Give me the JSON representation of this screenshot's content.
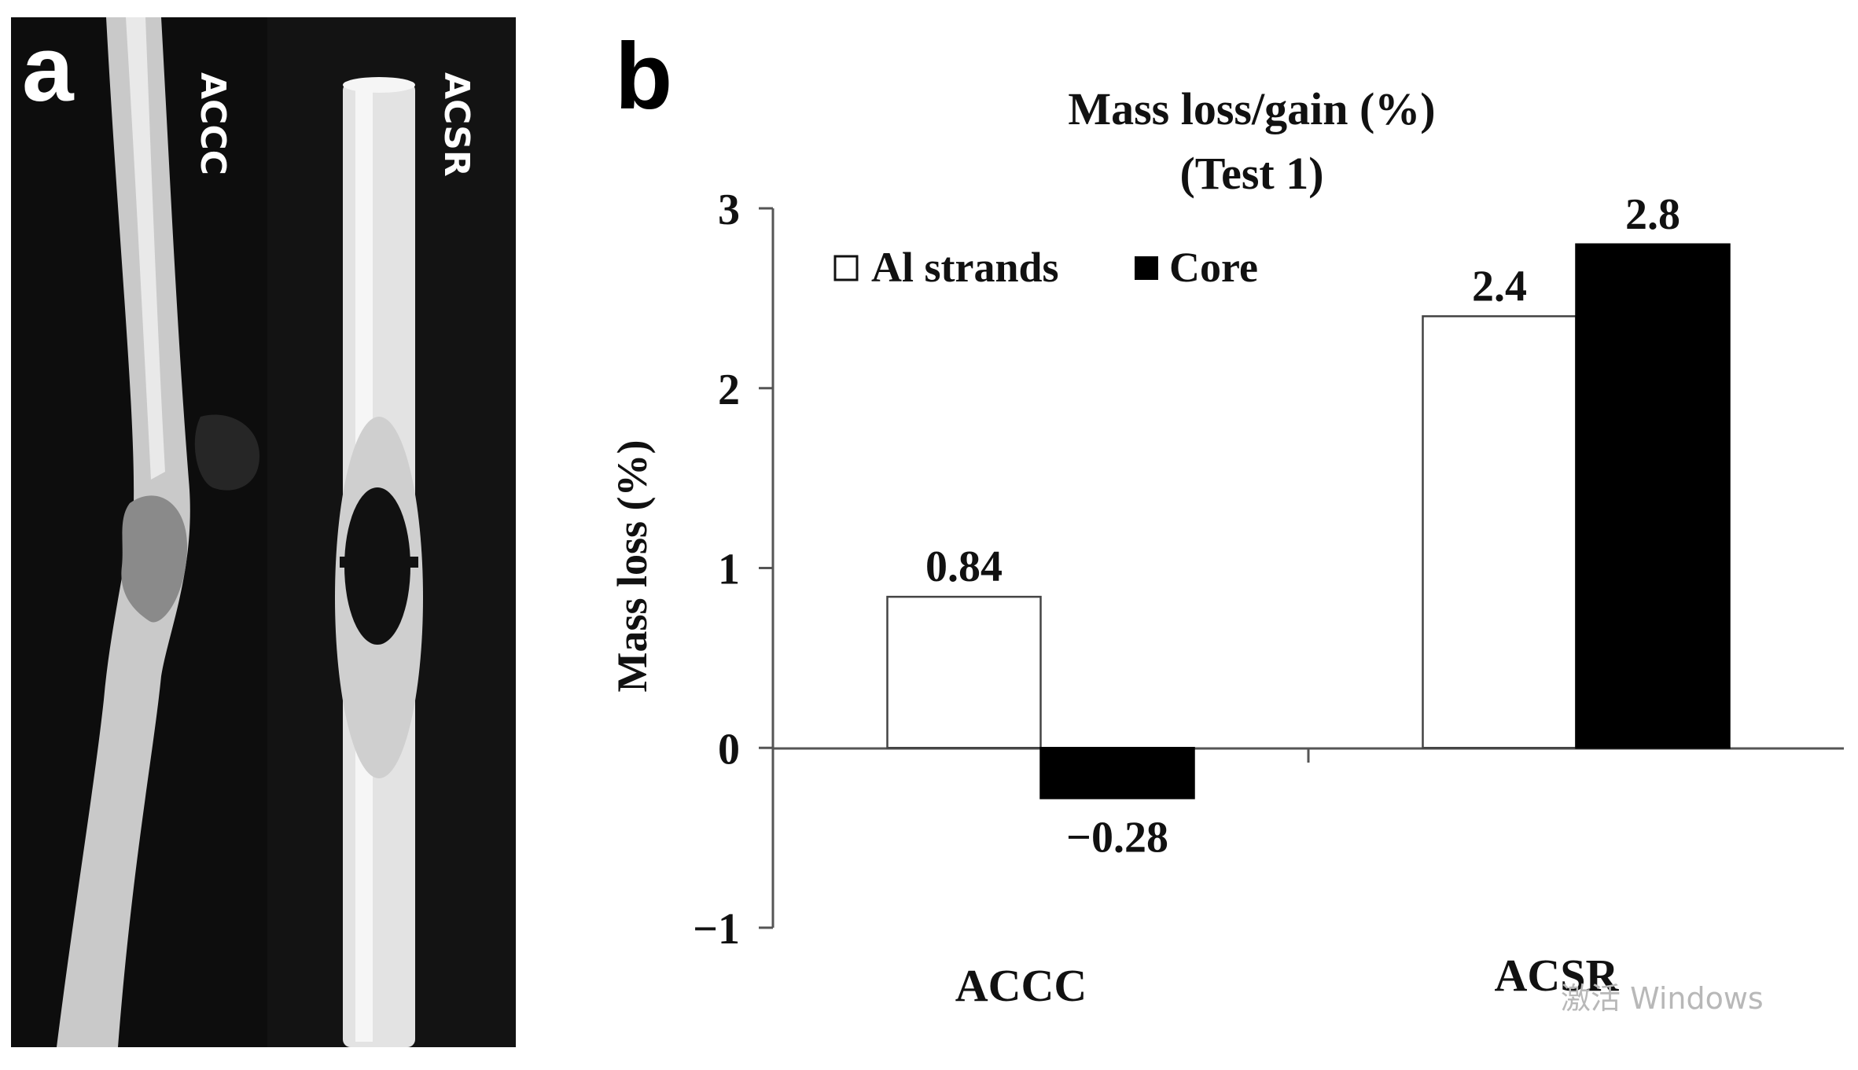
{
  "panels": {
    "a": {
      "letter": "a",
      "sample_labels": [
        "ACCC",
        "ACSR"
      ]
    },
    "b": {
      "letter": "b"
    }
  },
  "chart_data": {
    "type": "bar",
    "title": "Mass loss/gain (%)",
    "subtitle": "(Test 1)",
    "xlabel": "",
    "ylabel": "Mass loss (%)",
    "categories": [
      "ACCC",
      "ACSR"
    ],
    "series": [
      {
        "name": "Al strands",
        "values": [
          0.84,
          2.4
        ],
        "data_labels": [
          "0.84",
          "2.4"
        ],
        "color": "#ffffff"
      },
      {
        "name": "Core",
        "values": [
          -0.28,
          2.8
        ],
        "data_labels": [
          "−0.28",
          "2.8"
        ],
        "color": "#000000"
      }
    ],
    "ylim": [
      -1,
      3
    ],
    "yticks": [
      -1,
      0,
      1,
      2,
      3
    ],
    "ytick_labels": [
      "−1",
      "0",
      "1",
      "2",
      "3"
    ],
    "grid": false,
    "legend_position": "top-left"
  },
  "watermark": "激活 Windows",
  "colors": {
    "photo_background": "#0d0d0d",
    "axis": "#555555",
    "text": "#111111"
  }
}
